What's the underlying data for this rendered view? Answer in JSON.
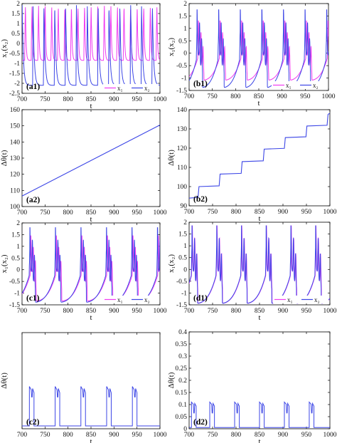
{
  "colors": {
    "x1": "#f03cf0",
    "x2": "#3c46e6",
    "combo": "#5a3cd2"
  },
  "chart_data": [
    {
      "id": "a1",
      "type": "line",
      "panel_label": "(a1)",
      "xlabel": "t",
      "ylabel": "x₁(x₂)",
      "xlim": [
        700,
        1000
      ],
      "ylim": [
        -2.5,
        2
      ],
      "xticks": [
        700,
        750,
        800,
        850,
        900,
        950,
        1000
      ],
      "yticks": [
        -2.5,
        -2,
        -1.5,
        -1,
        -0.5,
        0,
        0.5,
        1,
        1.5,
        2
      ],
      "legend": {
        "position": "bottom-right",
        "entries": [
          "x₁",
          "x₂"
        ]
      },
      "series": [
        {
          "name": "x₁",
          "period": 14.3,
          "phase": 5,
          "base": -0.85,
          "peak": 1.9,
          "dip": -1.0,
          "rise_frac": 0.12
        },
        {
          "name": "x₂",
          "period": 23.6,
          "phase": 15,
          "base": -2.1,
          "peak": 1.95,
          "dip": -2.1,
          "rise_frac": 0.04
        }
      ]
    },
    {
      "id": "b1",
      "type": "line",
      "panel_label": "(b1)",
      "xlabel": "t",
      "ylabel": "x₁(x₂)",
      "xlim": [
        700,
        1000
      ],
      "ylim": [
        -1.5,
        2
      ],
      "xticks": [
        700,
        750,
        800,
        850,
        900,
        950,
        1000
      ],
      "yticks": [
        -1.5,
        -1,
        -0.5,
        0,
        0.5,
        1,
        1.5,
        2
      ],
      "legend": {
        "position": "bottom-right",
        "entries": [
          "x₁",
          "x₂"
        ]
      },
      "bursts": {
        "first": 717,
        "period": 46.5,
        "count": 7
      },
      "series": [
        {
          "name": "x₁",
          "low": -1.1,
          "high": 1.3,
          "lag": 3
        },
        {
          "name": "x₂",
          "low": -1.4,
          "high": 1.75,
          "lag": 0
        }
      ]
    },
    {
      "id": "a2",
      "type": "line",
      "panel_label": "(a2)",
      "xlabel": "t",
      "ylabel": "Δθ(t)",
      "xlim": [
        700,
        1000
      ],
      "ylim": [
        100,
        160
      ],
      "xticks": [
        700,
        750,
        800,
        850,
        900,
        950,
        1000
      ],
      "yticks": [
        100,
        110,
        120,
        130,
        140,
        150,
        160
      ],
      "x": [
        700,
        1000
      ],
      "y": [
        106.5,
        150.5
      ]
    },
    {
      "id": "b2",
      "type": "line",
      "panel_label": "(b2)",
      "xlabel": "t",
      "ylabel": "Δθ(t)",
      "xlim": [
        700,
        1000
      ],
      "ylim": [
        90,
        140
      ],
      "xticks": [
        700,
        750,
        800,
        850,
        900,
        950,
        1000
      ],
      "yticks": [
        90,
        100,
        110,
        120,
        130,
        140
      ],
      "steps_x": [
        700,
        721,
        766,
        813,
        860,
        905,
        951,
        996,
        1000
      ],
      "steps_y": [
        94,
        100,
        106.5,
        113,
        119.5,
        125.5,
        131.5,
        137.5,
        138
      ]
    },
    {
      "id": "c1",
      "type": "line",
      "panel_label": "(c1)",
      "xlabel": "t",
      "ylabel": "x₁(x₂)",
      "xlim": [
        700,
        1000
      ],
      "ylim": [
        -1.5,
        2
      ],
      "xticks": [
        700,
        750,
        800,
        850,
        900,
        950,
        1000
      ],
      "yticks": [
        -1.5,
        -1,
        -0.5,
        0,
        0.5,
        1,
        1.5,
        2
      ],
      "legend": {
        "position": "bottom-right",
        "entries": [
          "x₁",
          "x₂"
        ]
      },
      "bursts": {
        "first": 717,
        "period": 55.5,
        "count": 6
      },
      "series": [
        {
          "name": "x₁",
          "low": -1.35,
          "high": 1.45,
          "lag": 2
        },
        {
          "name": "x₂",
          "low": -1.4,
          "high": 1.8,
          "lag": 0
        }
      ]
    },
    {
      "id": "d1",
      "type": "line",
      "panel_label": "(d1)",
      "xlabel": "t",
      "ylabel": "x₁(x₂)",
      "xlim": [
        700,
        1000
      ],
      "ylim": [
        -1.5,
        2
      ],
      "xticks": [
        700,
        750,
        800,
        850,
        900,
        950,
        1000
      ],
      "yticks": [
        -1.5,
        -1,
        -0.5,
        0,
        0.5,
        1,
        1.5,
        2
      ],
      "legend": {
        "position": "bottom-right",
        "entries": [
          "x₁",
          "x₂"
        ]
      },
      "bursts": {
        "first": 706,
        "period": 52.7,
        "count": 6
      },
      "series": [
        {
          "name": "x₁",
          "low": -1.45,
          "high": 1.85,
          "lag": 0.6
        },
        {
          "name": "x₂",
          "low": -1.45,
          "high": 1.85,
          "lag": 0
        }
      ]
    },
    {
      "id": "c2",
      "type": "line",
      "panel_label": "(c2)",
      "xlabel": "t",
      "ylabel": "Δθ(t)",
      "xlim": [
        700,
        1000
      ],
      "ylim": [
        0,
        1
      ],
      "xticks": [
        700,
        750,
        800,
        850,
        900,
        950,
        1000
      ],
      "yticks": [],
      "pulse_starts": [
        716,
        772,
        828,
        884,
        940
      ],
      "pulse_high": 0.44,
      "pulse_mid": 0.33,
      "base": 0.03
    },
    {
      "id": "d2",
      "type": "line",
      "panel_label": "(d2)",
      "xlabel": "t",
      "ylabel": "Δθ(t)",
      "xlim": [
        700,
        1000
      ],
      "ylim": [
        0,
        0.4
      ],
      "xticks": [
        700,
        750,
        800,
        850,
        900,
        950,
        1000
      ],
      "yticks": [
        0,
        0.05,
        0.1,
        0.15,
        0.2,
        0.25,
        0.3,
        0.35,
        0.4
      ],
      "pulse_starts": [
        705,
        744,
        797,
        850,
        903,
        956
      ],
      "pulse_high": 0.11,
      "pulse_mid": 0.065,
      "base": 0.005
    }
  ]
}
